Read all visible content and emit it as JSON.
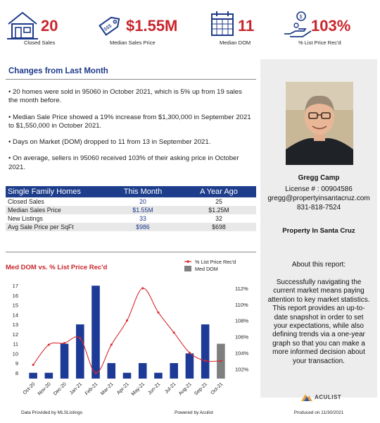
{
  "kpis": [
    {
      "value": "20",
      "label": "Closed Sales",
      "icon": "house-icon"
    },
    {
      "value": "$1.55M",
      "label": "Median Sales Price",
      "icon": "price-tag-icon"
    },
    {
      "value": "11",
      "label": "Median DOM",
      "icon": "calendar-icon"
    },
    {
      "value": "103%",
      "label": "% List Price Rec'd",
      "icon": "hand-coins-icon"
    }
  ],
  "changes": {
    "title": "Changes from Last Month",
    "bullets": [
      "• 20 homes were sold in 95060 in October 2021, which is 5% up from 19 sales the month before.",
      "• Median Sale Price showed a 19% increase  from $1,300,000 in September 2021 to $1,550,000 in October 2021.",
      "• Days on Market (DOM) dropped to 11 from 13 in September 2021.",
      "• On average, sellers in 95060 received 103% of their asking price in October 2021."
    ]
  },
  "table": {
    "headers": [
      "Single Family Homes",
      "This Month",
      "A Year Ago"
    ],
    "rows": [
      [
        "Closed Sales",
        "20",
        "25"
      ],
      [
        "Median Sales Price",
        "$1.55M",
        "$1.25M"
      ],
      [
        "New Listings",
        "33",
        "32"
      ],
      [
        "Avg Sale Price per SqFt",
        "$986",
        "$698"
      ]
    ]
  },
  "chart_data": {
    "type": "bar",
    "title": "Med DOM  vs. % List Price Rec'd",
    "categories": [
      "Oct-20",
      "Nov-20",
      "Dec-20",
      "Jan-21",
      "Feb-21",
      "Mar-21",
      "Apr-21",
      "May-21",
      "Jun-21",
      "Jul-21",
      "Aug-21",
      "Sep-21",
      "Oct-21"
    ],
    "series": [
      {
        "name": "Med DOM",
        "type": "bar",
        "axis": "left",
        "values": [
          8,
          8,
          11,
          13,
          17,
          9,
          8,
          9,
          8,
          9,
          10,
          13,
          11
        ],
        "color": "#1c3a96",
        "last_color": "#7f7f7f"
      },
      {
        "name": "% List Price Rec'd",
        "type": "line",
        "axis": "right",
        "values": [
          102.5,
          105.0,
          105.2,
          105.8,
          101.5,
          105.0,
          108.0,
          112.0,
          109.0,
          106.5,
          104.0,
          103.0,
          103.0
        ],
        "color": "#d9292c"
      }
    ],
    "yleft": {
      "ticks": [
        8,
        9,
        10,
        11,
        12,
        13,
        14,
        15,
        16,
        17
      ],
      "range": [
        7.4,
        17.6
      ]
    },
    "yright": {
      "ticks": [
        "102%",
        "104%",
        "106%",
        "108%",
        "110%",
        "112%"
      ],
      "tick_values": [
        102,
        104,
        106,
        108,
        110,
        112
      ],
      "range": [
        100.8,
        113.04
      ]
    },
    "legend_position": "top-right",
    "grid": false
  },
  "footer": {
    "data_provided": "Data Provided by MLSListings",
    "powered": "Powered by Aculist",
    "produced": "Produced on 11/30/2021"
  },
  "agent": {
    "name": "Gregg Camp",
    "license": "License # : 00904586",
    "email": "gregg@propertyinsantacruz.com",
    "phone": "831-818-7524",
    "company": "Property In Santa Cruz"
  },
  "about": {
    "title": "About this report:",
    "text": "Successfully navigating the current market means paying attention to key market statistics. This report provides an up-to-date snapshot in order to set your expectations, while also defining trends via a one-year graph so that you can make a more informed decision about your transaction."
  },
  "brand": {
    "name": "ACULIST"
  },
  "colors": {
    "accent_red": "#c9252c",
    "navy": "#1d3a8a",
    "panel_gray": "#ededed"
  }
}
